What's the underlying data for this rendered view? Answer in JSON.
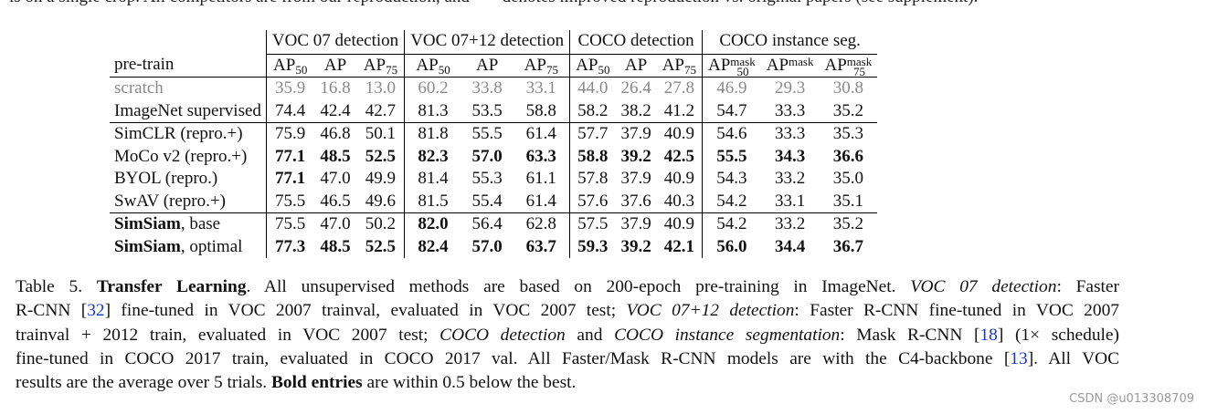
{
  "clipped_top_text": "is on a single crop. All competitors are from our reproduction, and \"+\" denotes improved reproduction vs. original papers (see supplement).",
  "table": {
    "corner_label": "pre-train",
    "groups": [
      "VOC 07 detection",
      "VOC 07+12 detection",
      "COCO detection",
      "COCO instance seg."
    ],
    "columns": {
      "ap50": {
        "base": "AP",
        "sub": "50"
      },
      "ap": "AP",
      "ap75": {
        "base": "AP",
        "sub": "75"
      },
      "apmask50": {
        "base": "AP",
        "sup": "mask",
        "sub": "50"
      },
      "apmask": {
        "base": "AP",
        "sup": "mask"
      },
      "apmask75": {
        "base": "AP",
        "sup": "mask",
        "sub": "75"
      }
    },
    "rows": [
      {
        "name": "scratch",
        "values": [
          "35.9",
          "16.8",
          "13.0",
          "60.2",
          "33.8",
          "33.1",
          "44.0",
          "26.4",
          "27.8",
          "46.9",
          "29.3",
          "30.8"
        ]
      },
      {
        "name": "ImageNet supervised",
        "values": [
          "74.4",
          "42.4",
          "42.7",
          "81.3",
          "53.5",
          "58.8",
          "58.2",
          "38.2",
          "41.2",
          "54.7",
          "33.3",
          "35.2"
        ]
      },
      {
        "name": "SimCLR (repro.+)",
        "values": [
          "75.9",
          "46.8",
          "50.1",
          "81.8",
          "55.5",
          "61.4",
          "57.7",
          "37.9",
          "40.9",
          "54.6",
          "33.3",
          "35.3"
        ]
      },
      {
        "name": "MoCo v2 (repro.+)",
        "values": [
          "77.1",
          "48.5",
          "52.5",
          "82.3",
          "57.0",
          "63.3",
          "58.8",
          "39.2",
          "42.5",
          "55.5",
          "34.3",
          "36.6"
        ]
      },
      {
        "name": "BYOL (repro.)",
        "values": [
          "77.1",
          "47.0",
          "49.9",
          "81.4",
          "55.3",
          "61.1",
          "57.8",
          "37.9",
          "40.9",
          "54.3",
          "33.2",
          "35.0"
        ]
      },
      {
        "name": "SwAV (repro.+)",
        "values": [
          "75.5",
          "46.5",
          "49.6",
          "81.5",
          "55.4",
          "61.4",
          "57.6",
          "37.6",
          "40.3",
          "54.2",
          "33.1",
          "35.1"
        ]
      },
      {
        "name_bold": "SimSiam",
        "name_rest": ", base",
        "values": [
          "75.5",
          "47.0",
          "50.2",
          "82.0",
          "56.4",
          "62.8",
          "57.5",
          "37.9",
          "40.9",
          "54.2",
          "33.2",
          "35.2"
        ]
      },
      {
        "name_bold": "SimSiam",
        "name_rest": ", optimal",
        "values": [
          "77.3",
          "48.5",
          "52.5",
          "82.4",
          "57.0",
          "63.7",
          "59.3",
          "39.2",
          "42.1",
          "56.0",
          "34.4",
          "36.7"
        ]
      }
    ]
  },
  "caption": {
    "table_no": "Table 5.",
    "heading": "Transfer Learning",
    "t1": ". All unsupervised methods are based on 200-epoch pre-training in ImageNet.",
    "i_voc07": "VOC 07 detection",
    "t2": ": Faster",
    "t3": "R-CNN",
    "c32": "32",
    "t4": "fine-tuned in VOC 2007 trainval, evaluated in VOC 2007 test;",
    "i_voc0712": "VOC 07+12 detection",
    "t5": ": Faster R-CNN fine-tuned in VOC 2007",
    "t6": "trainval + 2012 train, evaluated in VOC 2007 test;",
    "i_cocodet": "COCO detection",
    "t7": "and",
    "i_cocoinst": "COCO instance segmentation",
    "t8": ": Mask R-CNN",
    "c18": "18",
    "t9": "(1× schedule)",
    "t10": "fine-tuned in COCO 2017 train, evaluated in COCO 2017 val. All Faster/Mask R-CNN models are with the C4-backbone",
    "c13": "13",
    "t11": ". All VOC",
    "t12": "results are the average over 5 trials.",
    "bold_entries": "Bold entries",
    "t13": "are within 0.5 below the best."
  },
  "watermark": "CSDN @u013308709",
  "colors": {
    "citation": "#1a35c8",
    "scratch_row": "#8a8a8a",
    "watermark": "#9a9a9a"
  },
  "bold_cells": [
    [],
    [],
    [],
    [
      0,
      1,
      2,
      3,
      4,
      5,
      6,
      7,
      8,
      9,
      10,
      11
    ],
    [
      0
    ],
    [],
    [
      3
    ],
    [
      0,
      1,
      2,
      3,
      4,
      5,
      6,
      7,
      8,
      9,
      10,
      11
    ]
  ]
}
